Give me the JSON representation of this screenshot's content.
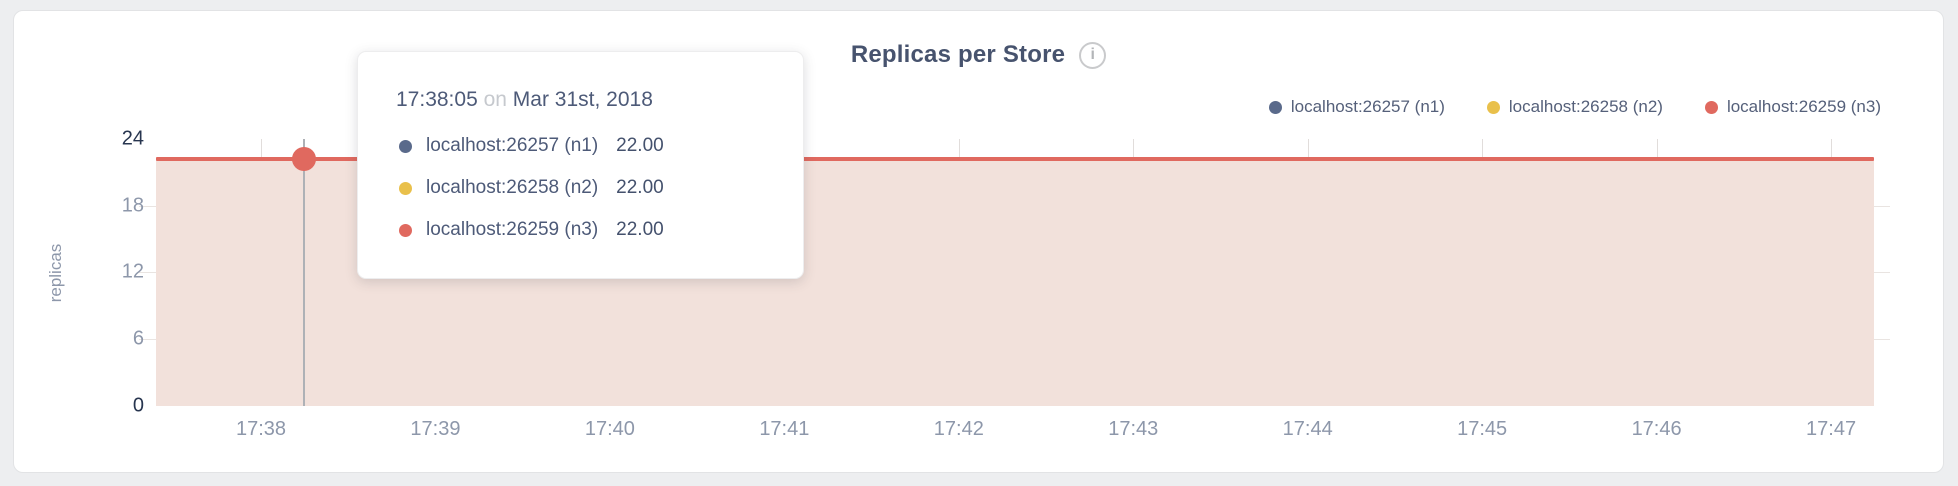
{
  "chart": {
    "title": "Replicas per Store",
    "info_icon_glyph": "i",
    "ylabel": "replicas",
    "y_tick_labels": [
      "24",
      "18",
      "12",
      "6",
      "0"
    ],
    "x_tick_labels": [
      "17:38",
      "17:39",
      "17:40",
      "17:41",
      "17:42",
      "17:43",
      "17:44",
      "17:45",
      "17:46",
      "17:47"
    ],
    "legend": [
      {
        "label": "localhost:26257 (n1)",
        "color": "#5a6a8b"
      },
      {
        "label": "localhost:26258 (n2)",
        "color": "#e9c04b"
      },
      {
        "label": "localhost:26259 (n3)",
        "color": "#e0695f"
      }
    ],
    "colors": {
      "line": "#e0695f",
      "area_fill": "#f2e1db",
      "hover_guideline": "#aeb1b6",
      "title_text": "#47536e",
      "tick_text": "#8d97aa"
    }
  },
  "tooltip": {
    "time": "17:38:05",
    "on_word": "on",
    "date": "Mar 31st, 2018",
    "rows": [
      {
        "label": "localhost:26257 (n1)",
        "value": "22.00",
        "color": "#5a6a8b"
      },
      {
        "label": "localhost:26258 (n2)",
        "value": "22.00",
        "color": "#e9c04b"
      },
      {
        "label": "localhost:26259 (n3)",
        "value": "22.00",
        "color": "#e0695f"
      }
    ]
  },
  "chart_data": {
    "type": "area",
    "title": "Replicas per Store",
    "xlabel": "",
    "ylabel": "replicas",
    "x": [
      "17:38",
      "17:39",
      "17:40",
      "17:41",
      "17:42",
      "17:43",
      "17:44",
      "17:45",
      "17:46",
      "17:47"
    ],
    "series": [
      {
        "name": "localhost:26257 (n1)",
        "color": "#5a6a8b",
        "values": [
          22,
          22,
          22,
          22,
          22,
          22,
          22,
          22,
          22,
          22
        ]
      },
      {
        "name": "localhost:26258 (n2)",
        "color": "#e9c04b",
        "values": [
          22,
          22,
          22,
          22,
          22,
          22,
          22,
          22,
          22,
          22
        ]
      },
      {
        "name": "localhost:26259 (n3)",
        "color": "#e0695f",
        "values": [
          22,
          22,
          22,
          22,
          22,
          22,
          22,
          22,
          22,
          22
        ]
      }
    ],
    "ylim": [
      0,
      24
    ],
    "y_ticks": [
      0,
      6,
      12,
      18,
      24
    ],
    "grid": true,
    "legend_position": "top-right",
    "hovered_point": {
      "time": "17:38:05",
      "date": "Mar 31st, 2018",
      "values": [
        22.0,
        22.0,
        22.0
      ]
    }
  }
}
